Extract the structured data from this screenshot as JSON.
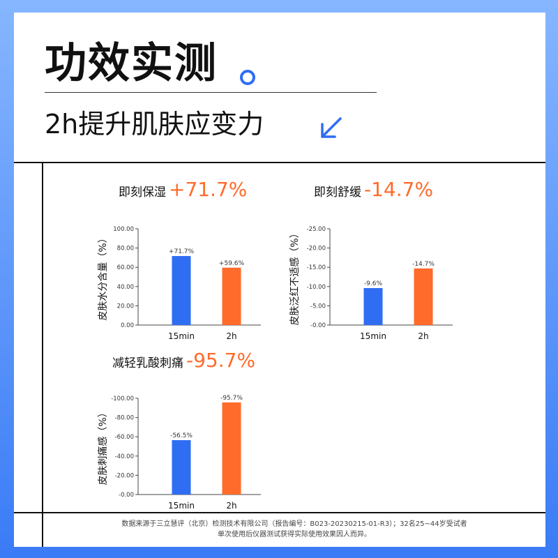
{
  "header": {
    "title": "功效实测",
    "subtitle": "2h提升肌肤应变力"
  },
  "colors": {
    "blue": "#2f6df3",
    "orange": "#ff6b2b",
    "background_top": "#86b6ff",
    "background_bottom": "#3a7bf6"
  },
  "icons": {
    "title_dot": "circle-dot-icon",
    "subtitle_arrow": "arrow-down-left-icon"
  },
  "charts": [
    {
      "name": "即刻保湿",
      "pct": "+71.7%"
    },
    {
      "name": "即刻舒缓",
      "pct": "-14.7%"
    },
    {
      "name": "减轻乳酸刺痛",
      "pct": "-95.7%"
    }
  ],
  "chart_data": [
    {
      "type": "bar",
      "ylabel": "皮肤水分含量（%）",
      "categories": [
        "15min",
        "2h"
      ],
      "values": [
        71.7,
        59.6
      ],
      "data_labels": [
        "+71.7%",
        "+59.6%"
      ],
      "yticks": [
        "100.00",
        "80.00",
        "60.00",
        "40.00",
        "20.00",
        "0.00"
      ],
      "ylim": [
        0,
        100
      ],
      "bar_colors": [
        "#2f6df3",
        "#ff6b2b"
      ],
      "grid": false
    },
    {
      "type": "bar",
      "ylabel": "皮肤泛红不适感（%）",
      "categories": [
        "15min",
        "2h"
      ],
      "values": [
        -9.6,
        -14.7
      ],
      "data_labels": [
        "-9.6%",
        "-14.7%"
      ],
      "yticks": [
        "-25.00",
        "-20.00",
        "-15.00",
        "-10.00",
        "-5.00",
        "-0.00"
      ],
      "ylim": [
        0,
        -25
      ],
      "bar_colors": [
        "#2f6df3",
        "#ff6b2b"
      ],
      "grid": false
    },
    {
      "type": "bar",
      "ylabel": "皮肤刺痛感（%）",
      "categories": [
        "15min",
        "2h"
      ],
      "values": [
        -56.5,
        -95.7
      ],
      "data_labels": [
        "-56.5%",
        "-95.7%"
      ],
      "yticks": [
        "-100.00",
        "-80.00",
        "-60.00",
        "-40.00",
        "-20.00",
        "-0.00"
      ],
      "ylim": [
        0,
        -100
      ],
      "bar_colors": [
        "#2f6df3",
        "#ff6b2b"
      ],
      "grid": false
    }
  ],
  "footnote": {
    "line1": "数据来源于三立慧评（北京）检测技术有限公司（报告编号：B023-20230215-01-R3）；32名25~44岁受试者",
    "line2": "单次使用后仪器测试获得实际使用效果因人而异。"
  }
}
